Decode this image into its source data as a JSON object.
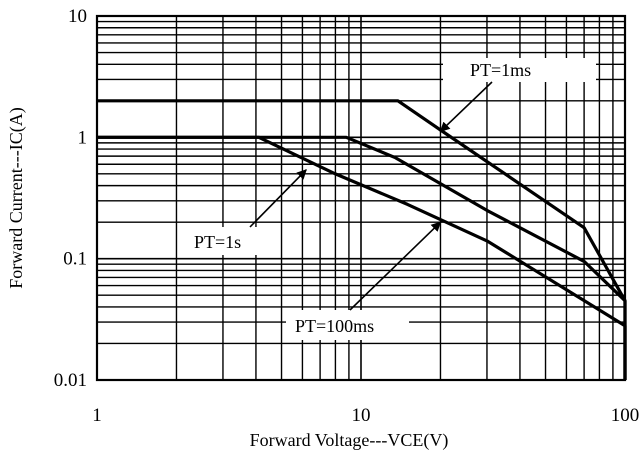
{
  "chart_data": {
    "type": "line",
    "x_scale": "log",
    "y_scale": "log",
    "xlim": [
      1,
      100
    ],
    "ylim": [
      0.01,
      10
    ],
    "grid": true,
    "xlabel": "Forward Voltage---VCE(V)",
    "ylabel": "Forward Current---IC(A)",
    "x_ticks": [
      {
        "value": 1,
        "label": "1"
      },
      {
        "value": 10,
        "label": "10"
      },
      {
        "value": 100,
        "label": "100"
      }
    ],
    "y_ticks": [
      {
        "value": 10,
        "label": "10"
      },
      {
        "value": 1,
        "label": "1"
      },
      {
        "value": 0.1,
        "label": "0.1"
      },
      {
        "value": 0.01,
        "label": "0.01"
      }
    ],
    "series": [
      {
        "name": "PT=1ms",
        "x": [
          1,
          13.8,
          20,
          70,
          100,
          100
        ],
        "y": [
          2.0,
          2.0,
          1.15,
          0.18,
          0.045,
          0.01
        ]
      },
      {
        "name": "PT=100ms",
        "x": [
          1,
          8.8,
          13.5,
          30,
          70,
          100,
          100
        ],
        "y": [
          1.0,
          1.0,
          0.68,
          0.25,
          0.095,
          0.045,
          0.01
        ]
      },
      {
        "name": "PT=1s",
        "x": [
          1,
          4.1,
          8,
          15,
          30,
          100,
          100
        ],
        "y": [
          1.0,
          1.0,
          0.5,
          0.28,
          0.14,
          0.028,
          0.01
        ]
      }
    ],
    "annotations": [
      {
        "text": "PT=1ms",
        "series": "PT=1ms",
        "arrow_to": [
          20,
          1.12
        ]
      },
      {
        "text": "PT=1s",
        "series": "PT=1s",
        "arrow_to": [
          6.2,
          0.54
        ]
      },
      {
        "text": "PT=100ms",
        "series": "PT=100ms",
        "arrow_to": [
          20,
          0.2
        ]
      }
    ]
  }
}
